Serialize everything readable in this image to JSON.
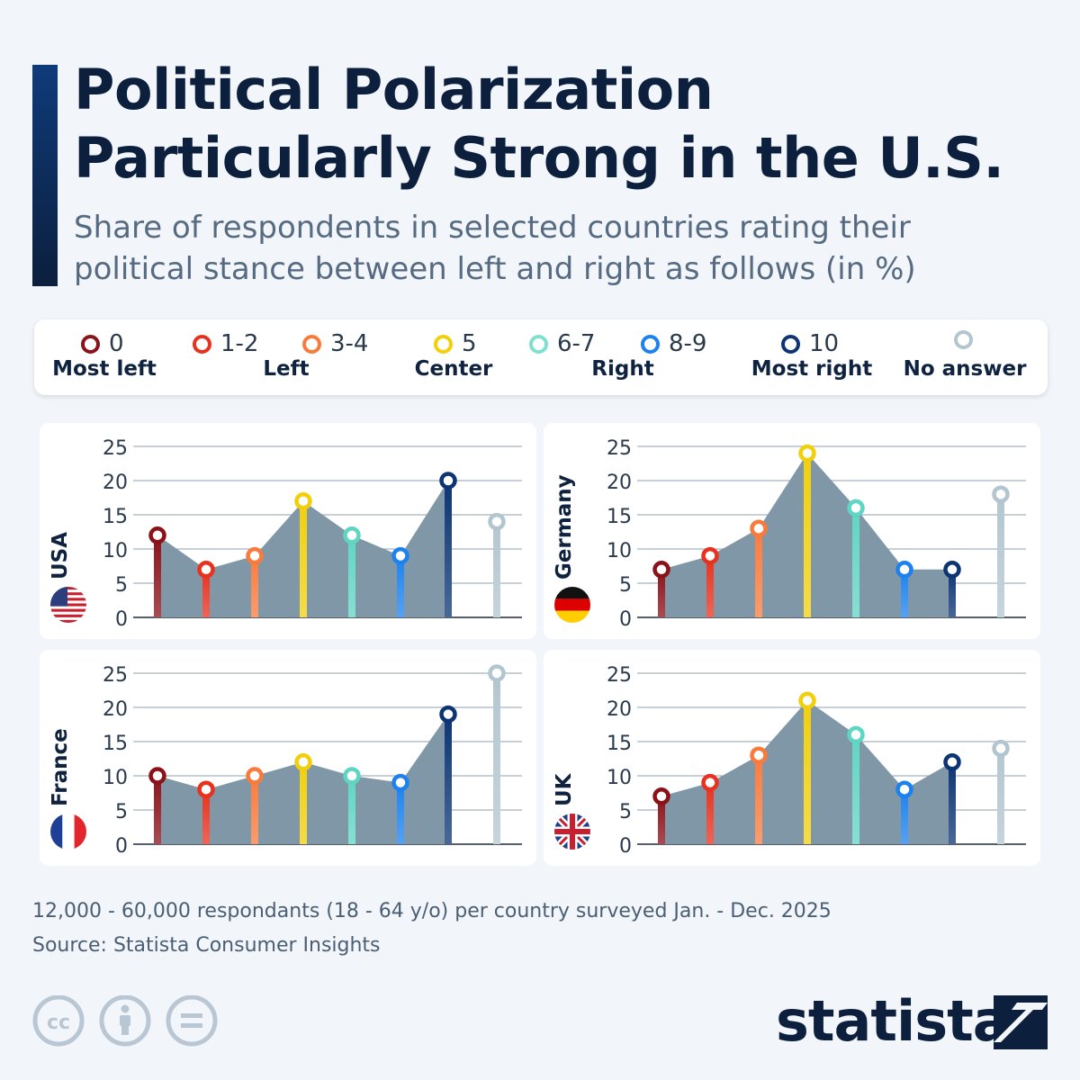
{
  "title_line1": "Political Polarization",
  "title_line2": "Particularly Strong in the U.S.",
  "subtitle_line1": "Share of respondents in selected countries rating their",
  "subtitle_line2": "political stance between left and right as follows (in %)",
  "legend": {
    "items": [
      {
        "label": "0",
        "color": "#8b1219"
      },
      {
        "label": "1-2",
        "color": "#e8321e"
      },
      {
        "label": "3-4",
        "color": "#f97b3c"
      },
      {
        "label": "5",
        "color": "#f2cf0b"
      },
      {
        "label": "6-7",
        "color": "#7fe0d0"
      },
      {
        "label": "8-9",
        "color": "#1d82ef"
      },
      {
        "label": "10",
        "color": "#0d3573"
      },
      {
        "label": "",
        "color": "#b3c6cf"
      }
    ],
    "categories": [
      "Most left",
      "Left",
      "Center",
      "Right",
      "Most right",
      "No answer"
    ]
  },
  "chart_data": [
    {
      "type": "line",
      "country": "USA",
      "categories": [
        "0",
        "1-2",
        "3-4",
        "5",
        "6-7",
        "8-9",
        "10",
        "No answer"
      ],
      "values": [
        12,
        7,
        9,
        17,
        12,
        9,
        20,
        14
      ],
      "ylim": [
        0,
        25
      ],
      "yticks": [
        "0",
        "5",
        "10",
        "15",
        "20",
        "25"
      ],
      "flag": "usa-flag"
    },
    {
      "type": "line",
      "country": "Germany",
      "categories": [
        "0",
        "1-2",
        "3-4",
        "5",
        "6-7",
        "8-9",
        "10",
        "No answer"
      ],
      "values": [
        7,
        9,
        13,
        24,
        16,
        7,
        7,
        18
      ],
      "ylim": [
        0,
        25
      ],
      "yticks": [
        "0",
        "5",
        "10",
        "15",
        "20",
        "25"
      ],
      "flag": "germany-flag"
    },
    {
      "type": "line",
      "country": "France",
      "categories": [
        "0",
        "1-2",
        "3-4",
        "5",
        "6-7",
        "8-9",
        "10",
        "No answer"
      ],
      "values": [
        10,
        8,
        10,
        12,
        10,
        9,
        19,
        25
      ],
      "ylim": [
        0,
        25
      ],
      "yticks": [
        "0",
        "5",
        "10",
        "15",
        "20",
        "25"
      ],
      "flag": "france-flag"
    },
    {
      "type": "line",
      "country": "UK",
      "categories": [
        "0",
        "1-2",
        "3-4",
        "5",
        "6-7",
        "8-9",
        "10",
        "No answer"
      ],
      "values": [
        7,
        9,
        13,
        21,
        16,
        8,
        12,
        14
      ],
      "ylim": [
        0,
        25
      ],
      "yticks": [
        "0",
        "5",
        "10",
        "15",
        "20",
        "25"
      ],
      "flag": "uk-flag"
    }
  ],
  "colors": {
    "lollipop": [
      "#8b1219",
      "#e8321e",
      "#f97b3c",
      "#f2cf0b",
      "#5fd5c3",
      "#1d82ef",
      "#0d3573",
      "#b3c6cf"
    ],
    "area": "#7f97a6",
    "grid": "#8fa1b3"
  },
  "footnote": "12,000 - 60,000 respondants (18 - 64 y/o) per country surveyed Jan. - Dec. 2025",
  "source": "Source: Statista Consumer Insights",
  "brand": "statista"
}
